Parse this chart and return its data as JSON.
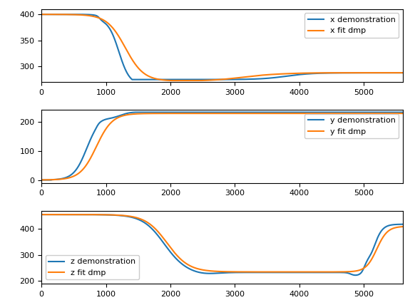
{
  "xlim": [
    0,
    5600
  ],
  "x_ticks": [
    0,
    1000,
    2000,
    3000,
    4000,
    5000
  ],
  "subplot1": {
    "ylim": [
      270,
      410
    ],
    "yticks": [
      300,
      350,
      400
    ],
    "legend": [
      "x demonstration",
      "x fit dmp"
    ]
  },
  "subplot2": {
    "ylim": [
      -10,
      240
    ],
    "yticks": [
      0,
      100,
      200
    ],
    "legend": [
      "y demonstration",
      "y fit dmp"
    ]
  },
  "subplot3": {
    "ylim": [
      190,
      470
    ],
    "yticks": [
      200,
      300,
      400
    ],
    "legend": [
      "z demonstration",
      "z fit dmp"
    ]
  },
  "color_demo": "#1f77b4",
  "color_fit": "#ff7f0e",
  "linewidth": 1.5
}
